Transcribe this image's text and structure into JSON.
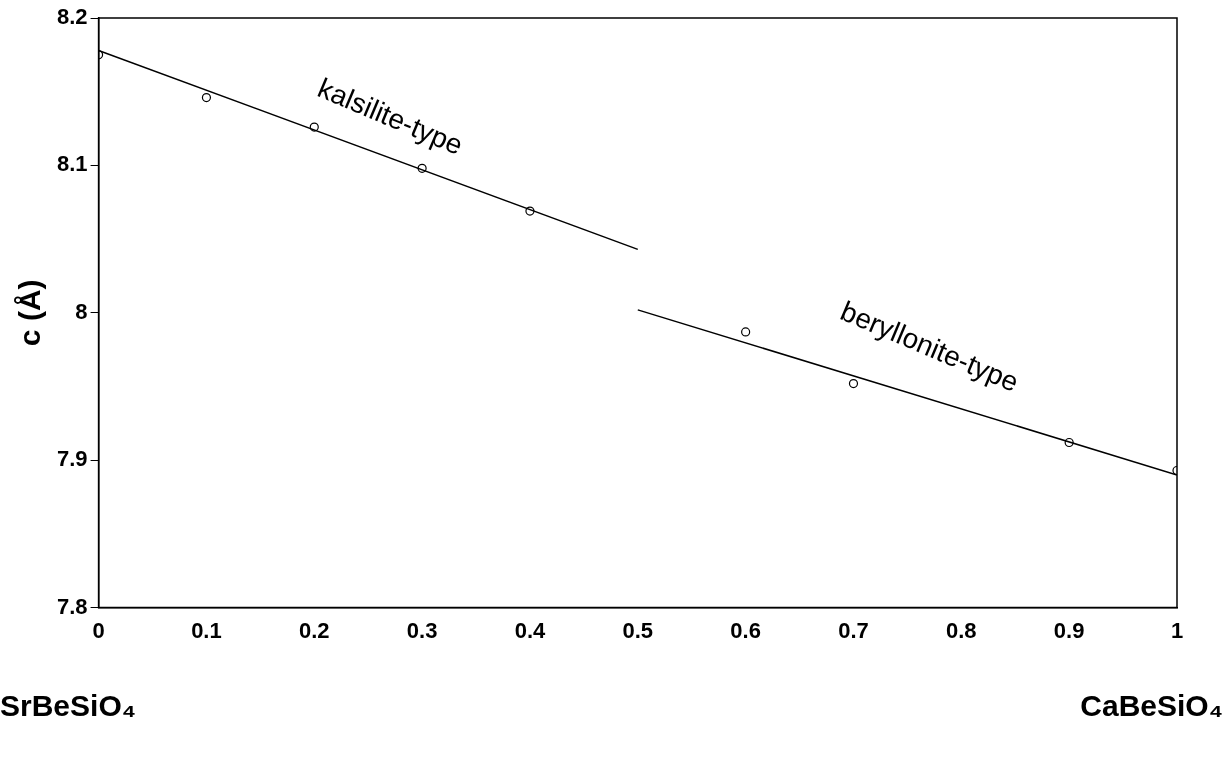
{
  "chart_data": {
    "type": "scatter",
    "ylabel": "c (Å)",
    "xlim": [
      0,
      1
    ],
    "xticks": [
      0,
      0.1,
      0.2,
      0.3,
      0.4,
      0.5,
      0.6,
      0.7,
      0.8,
      0.9,
      1
    ],
    "ylim": [
      7.8,
      8.2
    ],
    "yticks": [
      7.8,
      7.9,
      8,
      8.1,
      8.2
    ],
    "grid": false,
    "legend": false,
    "series": [
      {
        "type": "scatter",
        "marker": "circle",
        "color": "#000000",
        "x": [
          0,
          0.1,
          0.2,
          0.3,
          0.4,
          0.6,
          0.7,
          0.9,
          1
        ],
        "values": [
          8.175,
          8.146,
          8.126,
          8.098,
          8.069,
          7.987,
          7.952,
          7.912,
          7.893
        ]
      },
      {
        "type": "line",
        "marker": "none",
        "line_style": "solid",
        "color": "#000000",
        "x": [
          0,
          0.5
        ],
        "values": [
          8.178,
          8.043
        ]
      },
      {
        "type": "line",
        "marker": "none",
        "line_style": "solid",
        "color": "#000000",
        "x": [
          0.5,
          1
        ],
        "values": [
          8.002,
          7.89
        ]
      }
    ],
    "annotations": [
      "kalsilite-type",
      "beryllonite-type",
      "SrBeSiO₄",
      "CaBeSiO₄"
    ]
  }
}
